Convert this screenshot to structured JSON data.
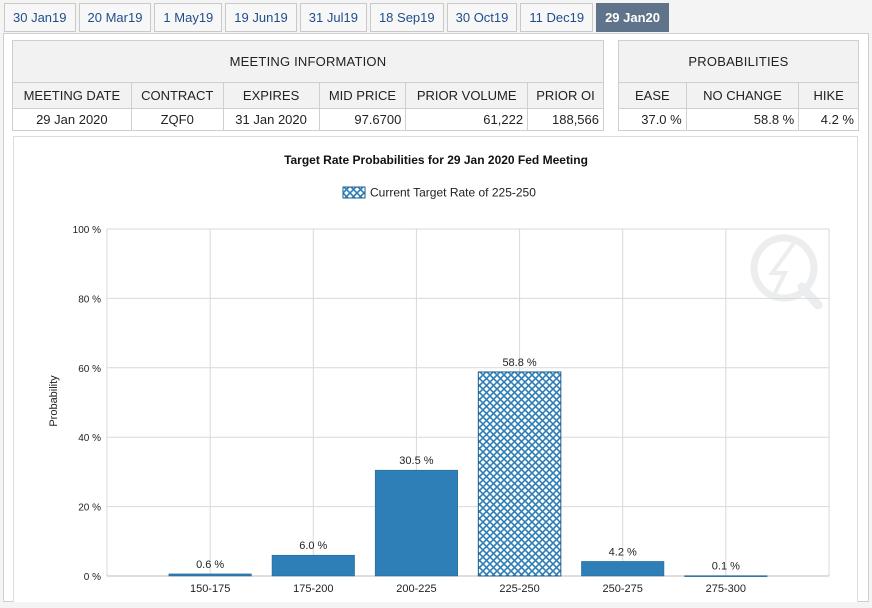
{
  "tabs": [
    {
      "label": "30 Jan19",
      "active": false
    },
    {
      "label": "20 Mar19",
      "active": false
    },
    {
      "label": "1 May19",
      "active": false
    },
    {
      "label": "19 Jun19",
      "active": false
    },
    {
      "label": "31 Jul19",
      "active": false
    },
    {
      "label": "18 Sep19",
      "active": false
    },
    {
      "label": "30 Oct19",
      "active": false
    },
    {
      "label": "11 Dec19",
      "active": false
    },
    {
      "label": "29 Jan20",
      "active": true
    }
  ],
  "meeting_info": {
    "title": "MEETING INFORMATION",
    "headers": [
      "MEETING DATE",
      "CONTRACT",
      "EXPIRES",
      "MID PRICE",
      "PRIOR VOLUME",
      "PRIOR OI"
    ],
    "values": [
      "29 Jan 2020",
      "ZQF0",
      "31 Jan 2020",
      "97.6700",
      "61,222",
      "188,566"
    ]
  },
  "probabilities": {
    "title": "PROBABILITIES",
    "headers": [
      "EASE",
      "NO CHANGE",
      "HIKE"
    ],
    "values": [
      "37.0 %",
      "58.8 %",
      "4.2 %"
    ]
  },
  "colors": {
    "bar": "#2e7eb8",
    "bar_border": "#1f5f8f",
    "grid": "#d9d9d9",
    "active_tab": "#5f738a"
  },
  "chart_data": {
    "type": "bar",
    "title": "Target Rate Probabilities for 29 Jan 2020 Fed Meeting",
    "legend": "Current Target Rate of 225-250",
    "ylabel": "Probability",
    "xlabel": "",
    "ylim": [
      0,
      100
    ],
    "yticks": [
      "0 %",
      "20 %",
      "40 %",
      "60 %",
      "80 %",
      "100 %"
    ],
    "categories": [
      "150-175",
      "175-200",
      "200-225",
      "225-250",
      "250-275",
      "275-300"
    ],
    "values": [
      0.6,
      6.0,
      30.5,
      58.8,
      4.2,
      0.1
    ],
    "value_labels": [
      "0.6 %",
      "6.0 %",
      "30.5 %",
      "58.8 %",
      "4.2 %",
      "0.1 %"
    ],
    "highlighted_category": "225-250",
    "grid": true
  }
}
